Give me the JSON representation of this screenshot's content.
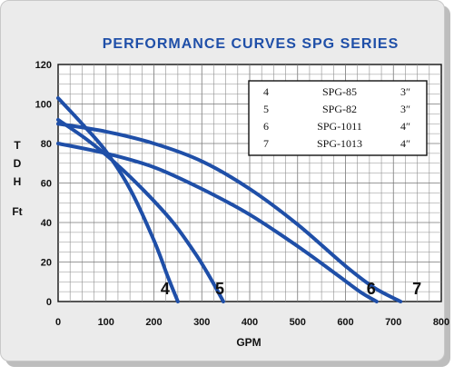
{
  "chart_data": {
    "type": "line",
    "title": "PERFORMANCE CURVES SPG SERIES",
    "xlabel": "GPM",
    "ylabel": [
      "T",
      "D",
      "H",
      "Ft"
    ],
    "xlim": [
      0,
      800
    ],
    "ylim": [
      0,
      120
    ],
    "x_ticks": [
      "0",
      "100",
      "200",
      "300",
      "400",
      "500",
      "600",
      "700",
      "800"
    ],
    "y_ticks": [
      "0",
      "20",
      "40",
      "60",
      "80",
      "100",
      "120"
    ],
    "grid": true,
    "legend_position": "top-right",
    "series": [
      {
        "name": "4",
        "model": "SPG-85",
        "size": "3″",
        "x": [
          0,
          50,
          100,
          150,
          200,
          230,
          250
        ],
        "y": [
          103,
          90,
          76,
          57,
          31,
          12,
          0
        ]
      },
      {
        "name": "5",
        "model": "SPG-82",
        "size": "3″",
        "x": [
          0,
          60,
          120,
          180,
          240,
          290,
          320,
          345
        ],
        "y": [
          92,
          82,
          70,
          56,
          40,
          23,
          11,
          0
        ]
      },
      {
        "name": "6",
        "model": "SPG-1011",
        "size": "4″",
        "x": [
          0,
          100,
          200,
          300,
          400,
          500,
          580,
          630,
          665
        ],
        "y": [
          80,
          75,
          68,
          57,
          44,
          28,
          14,
          5,
          0
        ]
      },
      {
        "name": "7",
        "model": "SPG-1013",
        "size": "4″",
        "x": [
          0,
          100,
          200,
          300,
          400,
          500,
          600,
          660,
          715
        ],
        "y": [
          90,
          86,
          80,
          71,
          57,
          39,
          18,
          7,
          0
        ]
      }
    ]
  }
}
